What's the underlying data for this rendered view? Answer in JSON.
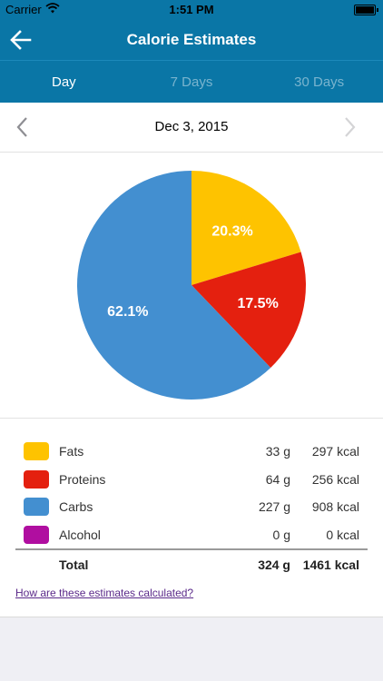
{
  "status_bar": {
    "carrier": "Carrier",
    "time": "1:51 PM"
  },
  "navbar": {
    "title": "Calorie Estimates",
    "back_icon": "arrow-left-icon"
  },
  "tabs": [
    {
      "label": "Day",
      "active": true
    },
    {
      "label": "7 Days",
      "active": false
    },
    {
      "label": "30 Days",
      "active": false
    }
  ],
  "date_bar": {
    "date": "Dec 3, 2015"
  },
  "chart_data": {
    "type": "pie",
    "slices": [
      {
        "name": "Fats",
        "value": 20.3,
        "label": "20.3%",
        "color": "#fec300"
      },
      {
        "name": "Proteins",
        "value": 17.5,
        "label": "17.5%",
        "color": "#e4200f"
      },
      {
        "name": "Carbs",
        "value": 62.1,
        "label": "62.1%",
        "color": "#438fd0"
      }
    ]
  },
  "legend": {
    "rows": [
      {
        "name": "Fats",
        "grams": "33 g",
        "kcal": "297 kcal",
        "color": "#fec300"
      },
      {
        "name": "Proteins",
        "grams": "64 g",
        "kcal": "256 kcal",
        "color": "#e4200f"
      },
      {
        "name": "Carbs",
        "grams": "227 g",
        "kcal": "908 kcal",
        "color": "#438fd0"
      },
      {
        "name": "Alcohol",
        "grams": "0 g",
        "kcal": "0 kcal",
        "color": "#b00ea0"
      }
    ],
    "total": {
      "label": "Total",
      "grams": "324 g",
      "kcal": "1461 kcal"
    },
    "help_link": "How are these estimates calculated?"
  }
}
